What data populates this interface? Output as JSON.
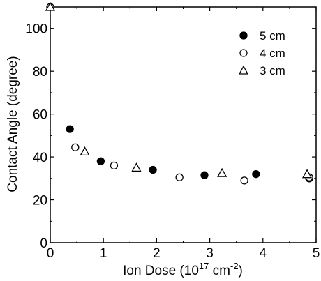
{
  "chart_data": {
    "type": "scatter",
    "xlabel_prefix": "Ion Dose (10",
    "xlabel_exp1": "17",
    "xlabel_mid": " cm",
    "xlabel_exp2": "-2",
    "xlabel_suffix": ")",
    "ylabel": "Contact Angle (degree)",
    "xlim": [
      0,
      5
    ],
    "ylim": [
      0,
      110
    ],
    "x_ticks": [
      0,
      1,
      2,
      3,
      4,
      5
    ],
    "y_ticks": [
      0,
      20,
      40,
      60,
      80,
      100
    ],
    "grid": false,
    "legend_position": "top-right",
    "series": [
      {
        "name": "5 cm",
        "marker": "filled-circle",
        "points": [
          [
            0.37,
            53
          ],
          [
            0.95,
            38
          ],
          [
            1.93,
            34
          ],
          [
            2.9,
            31.5
          ],
          [
            3.87,
            32
          ],
          [
            4.87,
            30
          ]
        ]
      },
      {
        "name": "4 cm",
        "marker": "open-circle",
        "points": [
          [
            0,
            110
          ],
          [
            0.47,
            44.5
          ],
          [
            1.2,
            36
          ],
          [
            2.43,
            30.5
          ],
          [
            3.65,
            29
          ],
          [
            4.87,
            30.5
          ]
        ]
      },
      {
        "name": "3 cm",
        "marker": "open-triangle",
        "points": [
          [
            0,
            110
          ],
          [
            0.65,
            42.5
          ],
          [
            1.62,
            35
          ],
          [
            3.23,
            32.5
          ],
          [
            4.83,
            32
          ]
        ]
      }
    ]
  }
}
